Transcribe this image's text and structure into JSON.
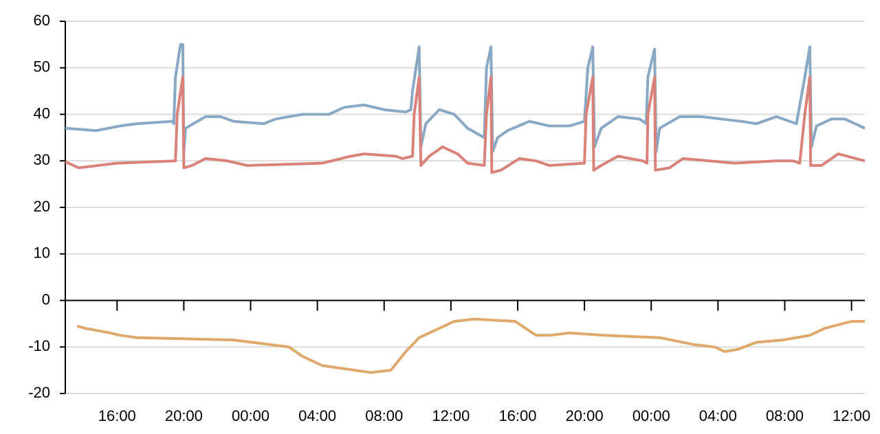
{
  "chart_data": {
    "type": "line",
    "xlim": [
      12.9,
      60.8
    ],
    "ylim": [
      -20,
      60
    ],
    "yticks": [
      -20,
      -10,
      0,
      10,
      20,
      30,
      40,
      50,
      60
    ],
    "xticks": [
      {
        "value": 16,
        "label": "16:00"
      },
      {
        "value": 20,
        "label": "20:00"
      },
      {
        "value": 24,
        "label": "00:00"
      },
      {
        "value": 28,
        "label": "04:00"
      },
      {
        "value": 32,
        "label": "08:00"
      },
      {
        "value": 36,
        "label": "12:00"
      },
      {
        "value": 40,
        "label": "16:00"
      },
      {
        "value": 44,
        "label": "20:00"
      },
      {
        "value": 48,
        "label": "00:00"
      },
      {
        "value": 52,
        "label": "04:00"
      },
      {
        "value": 56,
        "label": "08:00"
      },
      {
        "value": 60,
        "label": "12:00"
      }
    ],
    "grid": true,
    "series": [
      {
        "color": "#88a8c3",
        "x": [
          12.9,
          14.75,
          16.2,
          17.2,
          19.3,
          19.4,
          19.5,
          19.8,
          19.94,
          20.0,
          20.1,
          21.3,
          22.2,
          23.0,
          24.8,
          25.5,
          27.1,
          28.7,
          29.6,
          30.8,
          32.0,
          33.3,
          33.6,
          33.7,
          34.1,
          34.2,
          34.5,
          35.3,
          36.2,
          37.0,
          38.0,
          38.13,
          38.4,
          38.5,
          38.8,
          39.4,
          40.7,
          41.9,
          43.1,
          44.0,
          44.2,
          44.5,
          44.6,
          45.0,
          46.0,
          47.3,
          47.7,
          47.8,
          48.2,
          48.3,
          48.5,
          49.7,
          51.0,
          52.2,
          53.4,
          54.3,
          55.5,
          56.7,
          57.2,
          57.5,
          57.6,
          57.9,
          58.8,
          59.6,
          60.8
        ],
        "values": [
          37,
          36.5,
          37.5,
          38,
          38.5,
          38,
          48,
          55,
          55,
          32,
          37,
          39.5,
          39.5,
          38.5,
          38,
          39,
          40,
          40,
          41.5,
          42,
          41,
          40.5,
          41,
          45,
          54.5,
          33,
          38,
          41,
          40,
          37,
          35,
          50,
          54.5,
          32,
          35,
          36.5,
          38.5,
          37.5,
          37.5,
          38.5,
          50,
          54.5,
          33,
          37,
          39.5,
          39,
          38,
          48,
          54,
          32,
          37,
          39.5,
          39.5,
          39,
          38.5,
          38,
          39.5,
          38,
          48,
          54.5,
          33,
          37.5,
          39,
          39,
          37
        ]
      },
      {
        "color": "#d98279",
        "x": [
          12.9,
          13.7,
          16.0,
          19.5,
          19.6,
          19.94,
          20.0,
          20.5,
          21.3,
          22.6,
          23.8,
          28.3,
          30.0,
          30.8,
          32.7,
          33.1,
          33.7,
          33.8,
          34.1,
          34.2,
          34.7,
          35.5,
          36.4,
          37.0,
          38.0,
          38.13,
          38.4,
          38.45,
          39.0,
          40.1,
          41.1,
          41.9,
          44.0,
          44.1,
          44.5,
          44.55,
          45.0,
          46.0,
          47.5,
          47.75,
          47.8,
          48.2,
          48.25,
          49.1,
          49.9,
          53.0,
          55.5,
          56.5,
          56.9,
          57.2,
          57.5,
          57.55,
          58.2,
          59.2,
          60.8
        ],
        "values": [
          29.8,
          28.5,
          29.5,
          30,
          40,
          48,
          28.5,
          29,
          30.5,
          30,
          29,
          29.5,
          31,
          31.5,
          31,
          30.5,
          31,
          40,
          48,
          29,
          31,
          33,
          31.5,
          29.5,
          29,
          40,
          48,
          27.5,
          28,
          30.5,
          30,
          29,
          29.5,
          40,
          48,
          28,
          29,
          31,
          30,
          29.5,
          40,
          48,
          28,
          28.5,
          30.5,
          29.5,
          30,
          30,
          29.5,
          40,
          48,
          29,
          29,
          31.5,
          30
        ]
      },
      {
        "color": "#e0a96c",
        "x": [
          13.6,
          14.1,
          15.6,
          16.2,
          17.2,
          23.0,
          26.3,
          27.1,
          28.3,
          31.2,
          32.4,
          33.3,
          34.1,
          35.3,
          36.2,
          37.4,
          39.85,
          41.1,
          41.9,
          43.1,
          45.2,
          48.5,
          50.6,
          51.8,
          52.4,
          53.2,
          54.3,
          55.9,
          57.5,
          58.4,
          60.0,
          60.8
        ],
        "values": [
          -5.5,
          -6,
          -7,
          -7.5,
          -8,
          -8.5,
          -10,
          -12,
          -14,
          -15.5,
          -15,
          -11,
          -8,
          -6,
          -4.5,
          -4,
          -4.5,
          -7.5,
          -7.5,
          -7,
          -7.5,
          -8,
          -9.5,
          -10,
          -11,
          -10.5,
          -9,
          -8.5,
          -7.5,
          -6,
          -4.5,
          -4.5
        ]
      }
    ]
  }
}
